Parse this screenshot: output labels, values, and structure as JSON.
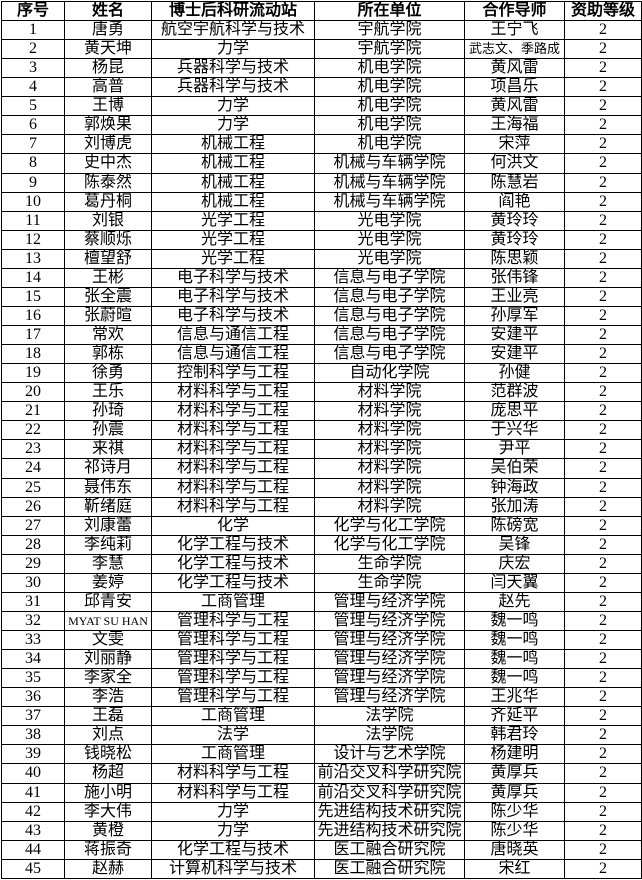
{
  "colors": {
    "background": "#ffffff",
    "border": "#000000",
    "text": "#000000"
  },
  "table": {
    "headers": [
      "序号",
      "姓名",
      "博士后科研流动站",
      "所在单位",
      "合作导师",
      "资助等级"
    ],
    "rows": [
      {
        "no": "1",
        "name": "唐勇",
        "station": "航空宇航科学与技术",
        "unit": "宇航学院",
        "supervisor": "王宁飞",
        "level": "2"
      },
      {
        "no": "2",
        "name": "黄天坤",
        "station": "力学",
        "unit": "宇航学院",
        "supervisor": "武志文、季路成",
        "level": "2"
      },
      {
        "no": "3",
        "name": "杨昆",
        "station": "兵器科学与技术",
        "unit": "机电学院",
        "supervisor": "黄风雷",
        "level": "2"
      },
      {
        "no": "4",
        "name": "高普",
        "station": "兵器科学与技术",
        "unit": "机电学院",
        "supervisor": "项昌乐",
        "level": "2"
      },
      {
        "no": "5",
        "name": "王博",
        "station": "力学",
        "unit": "机电学院",
        "supervisor": "黄风雷",
        "level": "2"
      },
      {
        "no": "6",
        "name": "郭焕果",
        "station": "力学",
        "unit": "机电学院",
        "supervisor": "王海福",
        "level": "2"
      },
      {
        "no": "7",
        "name": "刘博虎",
        "station": "机械工程",
        "unit": "机电学院",
        "supervisor": "宋萍",
        "level": "2"
      },
      {
        "no": "8",
        "name": "史中杰",
        "station": "机械工程",
        "unit": "机械与车辆学院",
        "supervisor": "何洪文",
        "level": "2"
      },
      {
        "no": "9",
        "name": "陈泰然",
        "station": "机械工程",
        "unit": "机械与车辆学院",
        "supervisor": "陈慧岩",
        "level": "2"
      },
      {
        "no": "10",
        "name": "葛丹桐",
        "station": "机械工程",
        "unit": "机械与车辆学院",
        "supervisor": "阎艳",
        "level": "2"
      },
      {
        "no": "11",
        "name": "刘银",
        "station": "光学工程",
        "unit": "光电学院",
        "supervisor": "黄玲玲",
        "level": "2"
      },
      {
        "no": "12",
        "name": "蔡顺烁",
        "station": "光学工程",
        "unit": "光电学院",
        "supervisor": "黄玲玲",
        "level": "2"
      },
      {
        "no": "13",
        "name": "檀望舒",
        "station": "光学工程",
        "unit": "光电学院",
        "supervisor": "陈思颖",
        "level": "2"
      },
      {
        "no": "14",
        "name": "王彬",
        "station": "电子科学与技术",
        "unit": "信息与电子学院",
        "supervisor": "张伟锋",
        "level": "2"
      },
      {
        "no": "15",
        "name": "张全震",
        "station": "电子科学与技术",
        "unit": "信息与电子学院",
        "supervisor": "王业亮",
        "level": "2"
      },
      {
        "no": "16",
        "name": "张蔚暄",
        "station": "电子科学与技术",
        "unit": "信息与电子学院",
        "supervisor": "孙厚军",
        "level": "2"
      },
      {
        "no": "17",
        "name": "常欢",
        "station": "信息与通信工程",
        "unit": "信息与电子学院",
        "supervisor": "安建平",
        "level": "2"
      },
      {
        "no": "18",
        "name": "郭栋",
        "station": "信息与通信工程",
        "unit": "信息与电子学院",
        "supervisor": "安建平",
        "level": "2"
      },
      {
        "no": "19",
        "name": "徐勇",
        "station": "控制科学与工程",
        "unit": "自动化学院",
        "supervisor": "孙健",
        "level": "2"
      },
      {
        "no": "20",
        "name": "王乐",
        "station": "材料科学与工程",
        "unit": "材料学院",
        "supervisor": "范群波",
        "level": "2"
      },
      {
        "no": "21",
        "name": "孙琦",
        "station": "材料科学与工程",
        "unit": "材料学院",
        "supervisor": "庞思平",
        "level": "2"
      },
      {
        "no": "22",
        "name": "孙震",
        "station": "材料科学与工程",
        "unit": "材料学院",
        "supervisor": "于兴华",
        "level": "2"
      },
      {
        "no": "23",
        "name": "来祺",
        "station": "材料科学与工程",
        "unit": "材料学院",
        "supervisor": "尹平",
        "level": "2"
      },
      {
        "no": "24",
        "name": "祁诗月",
        "station": "材料科学与工程",
        "unit": "材料学院",
        "supervisor": "吴伯荣",
        "level": "2"
      },
      {
        "no": "25",
        "name": "聂伟东",
        "station": "材料科学与工程",
        "unit": "材料学院",
        "supervisor": "钟海政",
        "level": "2"
      },
      {
        "no": "26",
        "name": "靳绪庭",
        "station": "材料科学与工程",
        "unit": "材料学院",
        "supervisor": "张加涛",
        "level": "2"
      },
      {
        "no": "27",
        "name": "刘康蕾",
        "station": "化学",
        "unit": "化学与化工学院",
        "supervisor": "陈磅宽",
        "level": "2"
      },
      {
        "no": "28",
        "name": "李纯莉",
        "station": "化学工程与技术",
        "unit": "化学与化工学院",
        "supervisor": "吴锋",
        "level": "2"
      },
      {
        "no": "29",
        "name": "李慧",
        "station": "化学工程与技术",
        "unit": "生命学院",
        "supervisor": "庆宏",
        "level": "2"
      },
      {
        "no": "30",
        "name": "姜婷",
        "station": "化学工程与技术",
        "unit": "生命学院",
        "supervisor": "闫天翼",
        "level": "2"
      },
      {
        "no": "31",
        "name": "邱青安",
        "station": "工商管理",
        "unit": "管理与经济学院",
        "supervisor": "赵先",
        "level": "2"
      },
      {
        "no": "32",
        "name": "MYAT SU HAN",
        "station": "管理科学与工程",
        "unit": "管理与经济学院",
        "supervisor": "魏一鸣",
        "level": "2"
      },
      {
        "no": "33",
        "name": "文雯",
        "station": "管理科学与工程",
        "unit": "管理与经济学院",
        "supervisor": "魏一鸣",
        "level": "2"
      },
      {
        "no": "34",
        "name": "刘丽静",
        "station": "管理科学与工程",
        "unit": "管理与经济学院",
        "supervisor": "魏一鸣",
        "level": "2"
      },
      {
        "no": "35",
        "name": "李家全",
        "station": "管理科学与工程",
        "unit": "管理与经济学院",
        "supervisor": "魏一鸣",
        "level": "2"
      },
      {
        "no": "36",
        "name": "李浩",
        "station": "管理科学与工程",
        "unit": "管理与经济学院",
        "supervisor": "王兆华",
        "level": "2"
      },
      {
        "no": "37",
        "name": "王磊",
        "station": "工商管理",
        "unit": "法学院",
        "supervisor": "齐延平",
        "level": "2"
      },
      {
        "no": "38",
        "name": "刘点",
        "station": "法学",
        "unit": "法学院",
        "supervisor": "韩君玲",
        "level": "2"
      },
      {
        "no": "39",
        "name": "钱晓松",
        "station": "工商管理",
        "unit": "设计与艺术学院",
        "supervisor": "杨建明",
        "level": "2"
      },
      {
        "no": "40",
        "name": "杨超",
        "station": "材料科学与工程",
        "unit": "前沿交叉科学研究院",
        "supervisor": "黄厚兵",
        "level": "2"
      },
      {
        "no": "41",
        "name": "施小明",
        "station": "材料科学与工程",
        "unit": "前沿交叉科学研究院",
        "supervisor": "黄厚兵",
        "level": "2"
      },
      {
        "no": "42",
        "name": "李大伟",
        "station": "力学",
        "unit": "先进结构技术研究院",
        "supervisor": "陈少华",
        "level": "2"
      },
      {
        "no": "43",
        "name": "黄橙",
        "station": "力学",
        "unit": "先进结构技术研究院",
        "supervisor": "陈少华",
        "level": "2"
      },
      {
        "no": "44",
        "name": "蒋振奇",
        "station": "化学工程与技术",
        "unit": "医工融合研究院",
        "supervisor": "唐晓英",
        "level": "2"
      },
      {
        "no": "45",
        "name": "赵赫",
        "station": "计算机科学与技术",
        "unit": "医工融合研究院",
        "supervisor": "宋红",
        "level": "2"
      }
    ]
  }
}
